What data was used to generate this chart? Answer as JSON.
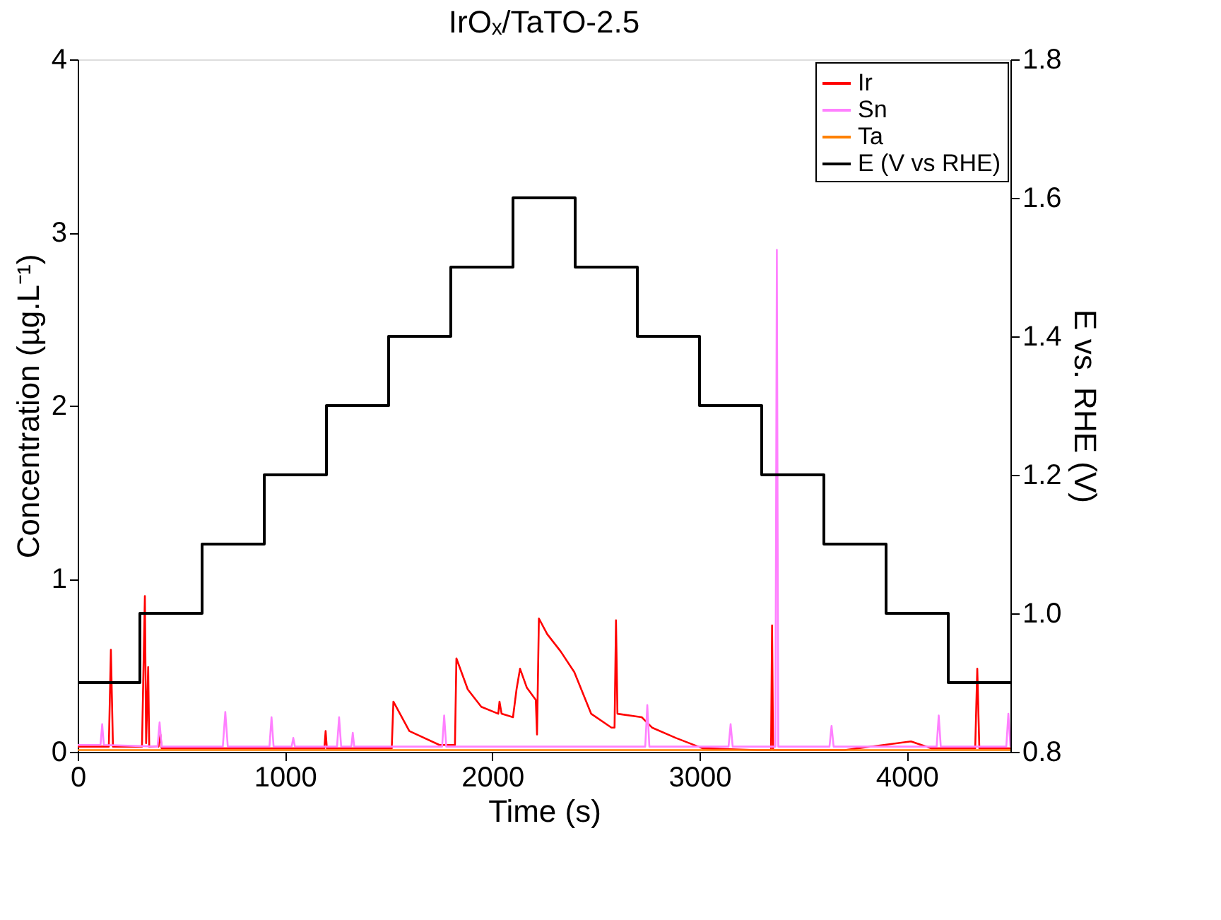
{
  "chart_data": {
    "type": "line",
    "title": "IrOₓ/TaTO-2.5",
    "xlabel": "Time (s)",
    "ylabel": "Concentration (µg.L⁻¹)",
    "y2label": "E vs. RHE (V)",
    "xlim": [
      0,
      4500
    ],
    "xticks": [
      0,
      1000,
      2000,
      3000,
      4000
    ],
    "ylim": [
      0,
      4
    ],
    "yticks": [
      0,
      1,
      2,
      3,
      4
    ],
    "y2lim": [
      0.8,
      1.8
    ],
    "y2ticks": [
      0.8,
      {
        "value": 1.0,
        "label": "1.0"
      },
      1.2,
      1.4,
      1.6,
      1.8
    ],
    "grid": false,
    "legend": "top right",
    "series": [
      {
        "name": "Ir",
        "color": "#ff0000",
        "x": [
          0,
          150,
          160,
          170,
          310,
          324,
          330,
          340,
          345,
          390,
          399,
          405,
          1190,
          1196,
          1202,
          1515,
          1523,
          1600,
          1745,
          1820,
          1827,
          1882,
          1947,
          2029,
          2035,
          2045,
          2100,
          2117,
          2134,
          2167,
          2210,
          2216,
          2225,
          2265,
          2330,
          2396,
          2477,
          2575,
          2590,
          2597,
          2604,
          2721,
          2771,
          2886,
          3016,
          3278,
          3345,
          3350,
          3355,
          3700,
          4020,
          4118,
          4330,
          4340,
          4350,
          4500
        ],
        "values": [
          0.03,
          0.03,
          0.59,
          0.03,
          0.03,
          0.9,
          0.05,
          0.49,
          0.03,
          0.03,
          0.1,
          0.02,
          0.02,
          0.12,
          0.02,
          0.02,
          0.29,
          0.12,
          0.04,
          0.04,
          0.54,
          0.36,
          0.26,
          0.22,
          0.29,
          0.22,
          0.2,
          0.36,
          0.48,
          0.37,
          0.3,
          0.1,
          0.77,
          0.68,
          0.58,
          0.46,
          0.22,
          0.14,
          0.14,
          0.76,
          0.22,
          0.2,
          0.14,
          0.08,
          0.02,
          0.01,
          0.01,
          0.73,
          0.01,
          0.01,
          0.06,
          0.02,
          0.02,
          0.48,
          0.02,
          0.02
        ]
      },
      {
        "name": "Sn",
        "color": "#ff80ff",
        "x": [
          0,
          110,
          118,
          126,
          385,
          395,
          405,
          700,
          712,
          724,
          925,
          935,
          945,
          1032,
          1040,
          1048,
          1251,
          1261,
          1271,
          1320,
          1327,
          1334,
          1758,
          1768,
          1778,
          2738,
          2748,
          2758,
          3140,
          3150,
          3160,
          3366,
          3373,
          3380,
          3627,
          3637,
          3647,
          4144,
          4154,
          4164,
          4480,
          4490,
          4500
        ],
        "values": [
          0.04,
          0.04,
          0.16,
          0.04,
          0.03,
          0.17,
          0.03,
          0.03,
          0.23,
          0.03,
          0.03,
          0.2,
          0.03,
          0.03,
          0.08,
          0.03,
          0.03,
          0.2,
          0.03,
          0.03,
          0.11,
          0.03,
          0.03,
          0.21,
          0.03,
          0.03,
          0.27,
          0.03,
          0.03,
          0.16,
          0.03,
          0.03,
          2.9,
          0.03,
          0.03,
          0.15,
          0.03,
          0.03,
          0.21,
          0.03,
          0.03,
          0.22,
          0.03
        ]
      },
      {
        "name": "Ta",
        "color": "#ff8000",
        "x": [
          0,
          1500,
          3000,
          4500
        ],
        "values": [
          0.01,
          0.01,
          0.01,
          0.01
        ]
      },
      {
        "name": "E (V vs RHE)",
        "color": "#000000",
        "type": "step",
        "axis": "y2",
        "x": [
          0,
          300,
          600,
          900,
          1200,
          1500,
          1800,
          2100,
          2400,
          2700,
          3000,
          3300,
          3600,
          3900,
          4200,
          4500
        ],
        "values": [
          0.9,
          1.0,
          1.1,
          1.2,
          1.3,
          1.4,
          1.5,
          1.6,
          1.5,
          1.4,
          1.3,
          1.2,
          1.1,
          1.0,
          0.9,
          0.9
        ]
      }
    ]
  }
}
